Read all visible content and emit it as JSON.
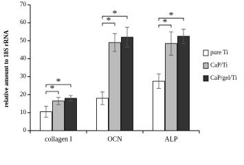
{
  "chart_data": {
    "type": "bar",
    "y_label": "relative amount to 18S rRNA",
    "categories": [
      "collagen I",
      "OCN",
      "ALP"
    ],
    "series": [
      {
        "name": "pure Ti",
        "color": "#ffffff",
        "values": [
          10.5,
          18,
          27.5
        ],
        "errors": [
          3,
          3.5,
          4
        ]
      },
      {
        "name": "CaP/Ti",
        "color": "#bbbbbb",
        "values": [
          16.5,
          49,
          48.5
        ],
        "errors": [
          2,
          5,
          6.5
        ]
      },
      {
        "name": "CaP/gel/Ti",
        "color": "#333333",
        "values": [
          18,
          52,
          52.5
        ],
        "errors": [
          1.5,
          5.5,
          4
        ]
      }
    ],
    "significance": [
      {
        "category": 0,
        "pair": [
          0,
          1
        ],
        "label": "*"
      },
      {
        "category": 0,
        "pair": [
          0,
          2
        ],
        "label": "*"
      },
      {
        "category": 1,
        "pair": [
          0,
          1
        ],
        "label": "*"
      },
      {
        "category": 1,
        "pair": [
          0,
          2
        ],
        "label": "*"
      },
      {
        "category": 2,
        "pair": [
          0,
          1
        ],
        "label": "*"
      },
      {
        "category": 2,
        "pair": [
          0,
          2
        ],
        "label": "*"
      }
    ],
    "ylim": [
      0,
      70
    ],
    "yticks": [
      0,
      10,
      20,
      30,
      40,
      50,
      60,
      70
    ],
    "legend": "right"
  }
}
